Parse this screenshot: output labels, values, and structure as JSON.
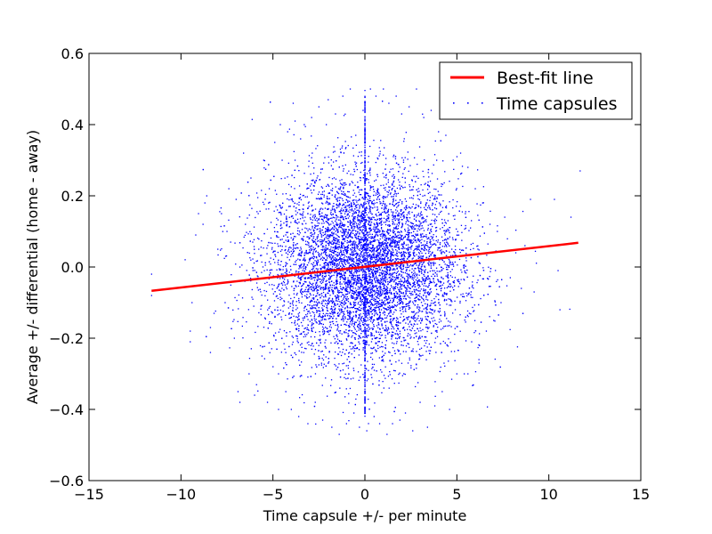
{
  "chart_data": {
    "type": "scatter",
    "title": "",
    "xlabel": "Time capsule +/- per minute",
    "ylabel": "Average +/- differential (home - away)",
    "xlim": [
      -15,
      15
    ],
    "ylim": [
      -0.6,
      0.6
    ],
    "x_ticks": [
      -15,
      -10,
      -5,
      0,
      5,
      10,
      15
    ],
    "x_tick_labels": [
      "−15",
      "−10",
      "−5",
      "0",
      "5",
      "10",
      "15"
    ],
    "y_ticks": [
      -0.6,
      -0.4,
      -0.2,
      0.0,
      0.2,
      0.4,
      0.6
    ],
    "y_tick_labels": [
      "−0.6",
      "−0.4",
      "−0.2",
      "0.0",
      "0.2",
      "0.4",
      "0.6"
    ],
    "grid": false,
    "legend_position": "top-right",
    "series": [
      {
        "name": "Best-fit line",
        "kind": "line",
        "color": "#ff0000",
        "x": [
          -11.6,
          11.6
        ],
        "y": [
          -0.067,
          0.068
        ]
      },
      {
        "name": "Time capsules",
        "kind": "points",
        "color": "#0000ff",
        "approx_count": 25000,
        "x_mean": 0.0,
        "x_std": 2.6,
        "y_mean": 0.0,
        "y_std": 0.13,
        "note_vertical_column_at_x": 0,
        "points": [
          [
            -11.6,
            -0.02
          ],
          [
            -11.6,
            -0.08
          ],
          [
            -9.4,
            -0.1
          ],
          [
            -9.5,
            -0.18
          ],
          [
            -9.5,
            -0.21
          ],
          [
            -9.2,
            0.09
          ],
          [
            -8.8,
            0.12
          ],
          [
            -8.7,
            0.18
          ],
          [
            -8.6,
            0.2
          ],
          [
            -8.4,
            -0.17
          ],
          [
            -8.4,
            -0.24
          ],
          [
            -8.2,
            -0.13
          ],
          [
            -8.0,
            0.05
          ],
          [
            -7.8,
            0.15
          ],
          [
            -7.6,
            -0.1
          ],
          [
            -7.5,
            0.1
          ],
          [
            -7.4,
            0.22
          ],
          [
            -7.3,
            0.07
          ],
          [
            -7.1,
            -0.2
          ],
          [
            -7.0,
            0.19
          ],
          [
            -6.9,
            -0.35
          ],
          [
            -6.8,
            -0.38
          ],
          [
            -6.8,
            0.0
          ],
          [
            -6.6,
            0.32
          ],
          [
            -6.5,
            0.12
          ],
          [
            -6.3,
            -0.3
          ],
          [
            -6.2,
            0.25
          ],
          [
            -6.1,
            0.07
          ],
          [
            -6.0,
            -0.36
          ],
          [
            -5.8,
            0.15
          ],
          [
            -5.6,
            -0.25
          ],
          [
            -5.5,
            0.3
          ],
          [
            -5.3,
            -0.38
          ],
          [
            -5.2,
            0.22
          ],
          [
            -5.0,
            -0.28
          ],
          [
            -4.9,
            0.35
          ],
          [
            -4.7,
            -0.4
          ],
          [
            -4.6,
            0.4
          ],
          [
            -4.5,
            0.3
          ],
          [
            -4.3,
            -0.35
          ],
          [
            -4.2,
            0.38
          ],
          [
            -4.0,
            -0.4
          ],
          [
            -3.9,
            0.46
          ],
          [
            -3.8,
            0.41
          ],
          [
            -3.6,
            -0.42
          ],
          [
            -3.5,
            0.36
          ],
          [
            -3.3,
            0.4
          ],
          [
            -3.1,
            -0.44
          ],
          [
            -2.9,
            0.42
          ],
          [
            -2.7,
            -0.38
          ],
          [
            -2.5,
            0.45
          ],
          [
            -2.3,
            -0.43
          ],
          [
            -2.1,
            0.4
          ],
          [
            -2.0,
            0.47
          ],
          [
            -1.8,
            -0.45
          ],
          [
            -1.6,
            0.43
          ],
          [
            -1.4,
            -0.47
          ],
          [
            -1.2,
            0.48
          ],
          [
            -1.0,
            -0.44
          ],
          [
            -0.8,
            0.5
          ],
          [
            -0.6,
            -0.41
          ],
          [
            -0.5,
            0.37
          ],
          [
            -0.3,
            -0.45
          ],
          [
            -0.1,
            0.44
          ],
          [
            0.1,
            -0.46
          ],
          [
            0.3,
            0.5
          ],
          [
            0.5,
            -0.42
          ],
          [
            0.6,
            0.48
          ],
          [
            0.8,
            -0.44
          ],
          [
            1.0,
            0.5
          ],
          [
            1.2,
            -0.47
          ],
          [
            1.3,
            0.46
          ],
          [
            1.5,
            -0.44
          ],
          [
            1.7,
            0.48
          ],
          [
            1.9,
            -0.43
          ],
          [
            2.0,
            0.43
          ],
          [
            2.2,
            -0.41
          ],
          [
            2.4,
            0.45
          ],
          [
            2.6,
            -0.46
          ],
          [
            2.8,
            0.5
          ],
          [
            3.0,
            -0.38
          ],
          [
            3.2,
            0.42
          ],
          [
            3.4,
            -0.45
          ],
          [
            3.6,
            0.44
          ],
          [
            3.8,
            -0.39
          ],
          [
            4.0,
            0.38
          ],
          [
            4.2,
            -0.35
          ],
          [
            4.4,
            0.37
          ],
          [
            4.6,
            -0.4
          ],
          [
            4.8,
            0.3
          ],
          [
            5.0,
            -0.3
          ],
          [
            5.2,
            0.32
          ],
          [
            5.4,
            -0.3
          ],
          [
            5.6,
            0.28
          ],
          [
            5.8,
            -0.21
          ],
          [
            6.0,
            0.22
          ],
          [
            6.2,
            -0.26
          ],
          [
            6.4,
            0.18
          ],
          [
            6.6,
            -0.18
          ],
          [
            6.8,
            0.12
          ],
          [
            7.0,
            -0.15
          ],
          [
            7.2,
            0.1
          ],
          [
            7.4,
            -0.1
          ],
          [
            7.6,
            0.14
          ],
          [
            7.9,
            -0.03
          ],
          [
            8.2,
            0.04
          ],
          [
            8.5,
            -0.06
          ],
          [
            8.7,
            0.06
          ],
          [
            9.0,
            0.19
          ],
          [
            9.2,
            -0.07
          ],
          [
            10.3,
            0.19
          ],
          [
            10.5,
            -0.01
          ],
          [
            10.6,
            -0.12
          ],
          [
            11.2,
            0.14
          ],
          [
            11.7,
            0.27
          ],
          [
            -4.7,
            -0.3
          ],
          [
            5.6,
            -0.3
          ],
          [
            4.3,
            -0.27
          ],
          [
            -3.8,
            0.3
          ],
          [
            3.9,
            0.3
          ]
        ]
      }
    ]
  }
}
